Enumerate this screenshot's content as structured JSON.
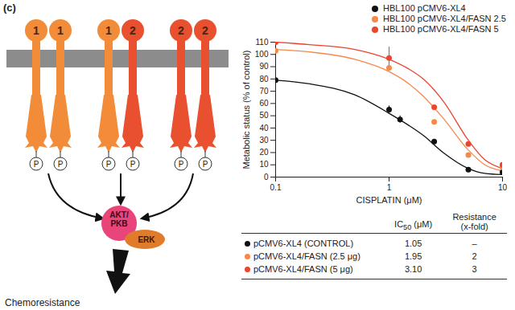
{
  "panel_label": "(c)",
  "diagram": {
    "receptors": [
      [
        "1",
        "1"
      ],
      [
        "1",
        "2"
      ],
      [
        "2",
        "2"
      ]
    ],
    "receptor_colors": {
      "1": "#f28c38",
      "2": "#e8502f"
    },
    "phospho_label": "P",
    "nodes": [
      {
        "lines": [
          "AKT/",
          "PKB"
        ],
        "color": "#e8457a"
      },
      {
        "lines": [
          "ERK"
        ],
        "color": "#e07b2a"
      }
    ],
    "outcome": "Chemoresistance"
  },
  "chart_data": {
    "type": "scatter",
    "xlabel": "CISPLATIN (μM)",
    "ylabel": "Metabolic status (% of control)",
    "log": "x",
    "xlim": [
      0.1,
      10
    ],
    "xticks": [
      0.1,
      1,
      10
    ],
    "ylim": [
      0,
      110
    ],
    "yticks": [
      0,
      10,
      20,
      30,
      40,
      50,
      60,
      70,
      80,
      90,
      100,
      110
    ],
    "grid": false,
    "legend": "top-right",
    "series": [
      {
        "name": "HBL100 pCMV6-XL4",
        "color": "#111111",
        "marker": "circle",
        "x": [
          0.1,
          1,
          1.25,
          2.5,
          5,
          10
        ],
        "values": [
          79,
          55,
          47,
          29,
          6,
          4
        ],
        "errors": [
          null,
          3,
          3,
          null,
          null,
          null
        ],
        "fit": {
          "x": [
            0.1,
            0.2,
            0.5,
            1,
            1.5,
            2,
            3,
            5,
            7,
            10
          ],
          "values": [
            79,
            76,
            67,
            52,
            42,
            34,
            20,
            7,
            3,
            2
          ]
        }
      },
      {
        "name": "HBL100 pCMV6-XL4/FASN 2.5",
        "color": "#f4894a",
        "marker": "circle",
        "x": [
          0.1,
          1,
          2.5,
          5,
          10
        ],
        "values": [
          103,
          89,
          45,
          18,
          8
        ],
        "errors": [
          null,
          null,
          null,
          null,
          null
        ],
        "fit": {
          "x": [
            0.1,
            0.2,
            0.5,
            1,
            1.5,
            2,
            3,
            5,
            7,
            10
          ],
          "values": [
            104,
            102,
            96,
            86,
            76,
            66,
            48,
            22,
            10,
            5
          ]
        }
      },
      {
        "name": "HBL100 pCMV6-XL4/FASN 5",
        "color": "#e9452f",
        "marker": "circle",
        "x": [
          0.1,
          1,
          2.5,
          5,
          10
        ],
        "values": [
          110,
          97,
          57,
          27,
          10
        ],
        "errors": [
          null,
          9,
          null,
          null,
          null
        ],
        "fit": {
          "x": [
            0.1,
            0.2,
            0.5,
            1,
            1.5,
            2,
            3,
            5,
            7,
            10
          ],
          "values": [
            110,
            108,
            104,
            96,
            88,
            80,
            62,
            30,
            14,
            7
          ]
        }
      }
    ]
  },
  "table": {
    "header": [
      "",
      {
        "main": "IC",
        "subscript": "50",
        "after": " (μM)"
      },
      [
        "Resistance",
        "(x-fold)"
      ]
    ],
    "rows": [
      {
        "color": "#111111",
        "cells": [
          "pCMV6-XL4 (CONTROL)",
          "1.05",
          "–"
        ]
      },
      {
        "color": "#f4894a",
        "cells": [
          "pCMV6-XL4/FASN (2.5 μg)",
          "1.95",
          "2"
        ]
      },
      {
        "color": "#e9452f",
        "cells": [
          "pCMV6-XL4/FASN (5 μg)",
          "3.10",
          "3"
        ]
      }
    ]
  }
}
